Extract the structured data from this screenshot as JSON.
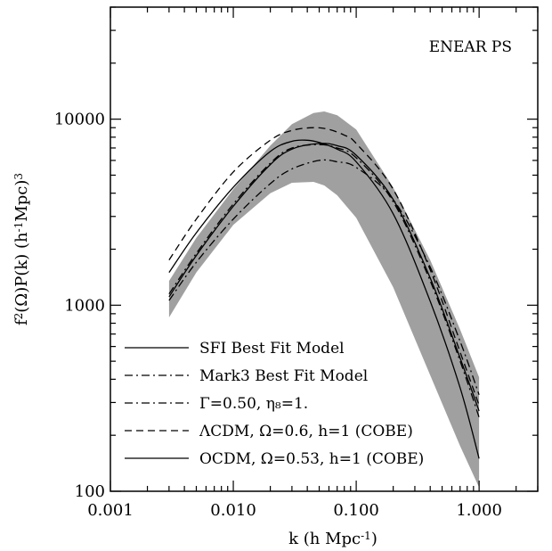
{
  "chart_data": {
    "type": "line",
    "annotation": "ENEAR PS",
    "xlabel_html": "k (h Mpc<sup>-1</sup>)",
    "ylabel_html": "f<sup>2</sup>(Ω)P(k) (h<sup>-1</sup>Mpc)<sup>3</sup>",
    "xscale": "log",
    "yscale": "log",
    "xlim": [
      0.001,
      3.0
    ],
    "ylim": [
      100,
      40000
    ],
    "x_ticks": [
      {
        "value": 0.001,
        "label": "0.001"
      },
      {
        "value": 0.01,
        "label": "0.010"
      },
      {
        "value": 0.1,
        "label": "0.100"
      },
      {
        "value": 1.0,
        "label": "1.000"
      }
    ],
    "y_ticks": [
      {
        "value": 100,
        "label": "100"
      },
      {
        "value": 1000,
        "label": "1000"
      },
      {
        "value": 10000,
        "label": "10000"
      }
    ],
    "band": {
      "color": "#a0a0a0",
      "x": [
        0.003,
        0.005,
        0.01,
        0.02,
        0.03,
        0.045,
        0.055,
        0.07,
        0.1,
        0.2,
        0.4,
        0.7,
        1.0
      ],
      "upper": [
        1350,
        2300,
        4200,
        7200,
        9400,
        10800,
        11000,
        10500,
        8800,
        4300,
        1750,
        740,
        410
      ],
      "lower": [
        860,
        1500,
        2700,
        4000,
        4550,
        4600,
        4400,
        3900,
        2950,
        1250,
        420,
        175,
        105
      ]
    },
    "series": [
      {
        "name": "SFI Best Fit Model",
        "dash": "solid",
        "x": [
          0.003,
          0.005,
          0.01,
          0.02,
          0.03,
          0.05,
          0.07,
          0.1,
          0.2,
          0.4,
          0.7,
          1.0
        ],
        "values": [
          1110,
          1850,
          3400,
          5700,
          6900,
          7400,
          7200,
          6400,
          3700,
          1400,
          520,
          270
        ]
      },
      {
        "name": "Mark3 Best Fit Model",
        "dash": "dashdot",
        "x": [
          0.003,
          0.005,
          0.01,
          0.02,
          0.03,
          0.05,
          0.07,
          0.1,
          0.2,
          0.4,
          0.7,
          1.0
        ],
        "values": [
          1150,
          1900,
          3500,
          5800,
          7000,
          7300,
          7000,
          6200,
          3600,
          1350,
          500,
          250
        ]
      },
      {
        "name": "Γ=0.50, η₈=1.",
        "dash": "dashdot",
        "x": [
          0.003,
          0.005,
          0.01,
          0.02,
          0.03,
          0.05,
          0.07,
          0.1,
          0.2,
          0.4,
          0.7,
          1.0
        ],
        "values": [
          1060,
          1700,
          2900,
          4500,
          5400,
          6000,
          5900,
          5500,
          3700,
          1600,
          640,
          330
        ]
      },
      {
        "name": "ΛCDM, Ω=0.6, h=1 (COBE)",
        "dash": "dashed",
        "x": [
          0.003,
          0.005,
          0.01,
          0.02,
          0.03,
          0.045,
          0.06,
          0.08,
          0.1,
          0.2,
          0.4,
          0.7,
          1.0
        ],
        "values": [
          1750,
          2900,
          5200,
          7700,
          8700,
          9000,
          8800,
          8200,
          7400,
          4200,
          1550,
          560,
          290
        ]
      },
      {
        "name": "OCDM, Ω=0.53, h=1 (COBE)",
        "dash": "solid",
        "x": [
          0.003,
          0.005,
          0.01,
          0.02,
          0.03,
          0.04,
          0.05,
          0.07,
          0.1,
          0.2,
          0.4,
          0.7,
          1.0
        ],
        "values": [
          1500,
          2450,
          4300,
          6700,
          7600,
          7700,
          7500,
          6900,
          5900,
          3100,
          1050,
          360,
          150
        ]
      }
    ]
  }
}
